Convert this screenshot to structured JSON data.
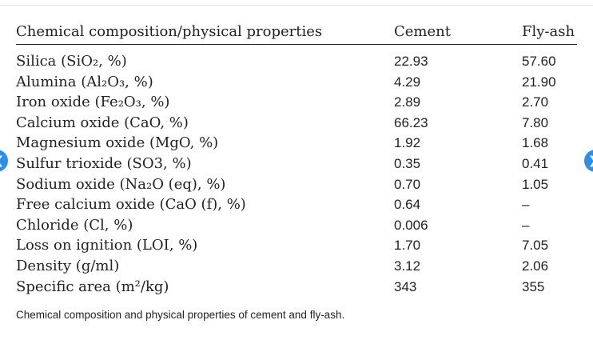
{
  "table": {
    "headers": {
      "property": "Chemical composition/physical properties",
      "cement": "Cement",
      "flyash": "Fly-ash"
    },
    "rows": [
      {
        "property": "Silica (SiO₂, %)",
        "cement": "22.93",
        "flyash": "57.60"
      },
      {
        "property": "Alumina (Al₂O₃, %)",
        "cement": "4.29",
        "flyash": "21.90"
      },
      {
        "property": "Iron oxide (Fe₂O₃, %)",
        "cement": "2.89",
        "flyash": "2.70"
      },
      {
        "property": "Calcium oxide (CaO, %)",
        "cement": "66.23",
        "flyash": "7.80"
      },
      {
        "property": "Magnesium oxide (MgO, %)",
        "cement": "1.92",
        "flyash": "1.68"
      },
      {
        "property": "Sulfur trioxide (SO3, %)",
        "cement": "0.35",
        "flyash": "0.41"
      },
      {
        "property": "Sodium oxide (Na₂O (eq), %)",
        "cement": "0.70",
        "flyash": "1.05"
      },
      {
        "property": "Free calcium oxide (CaO (f), %)",
        "cement": "0.64",
        "flyash": "–"
      },
      {
        "property": "Chloride (Cl, %)",
        "cement": "0.006",
        "flyash": "–"
      },
      {
        "property": "Loss on ignition (LOI, %)",
        "cement": "1.70",
        "flyash": "7.05"
      },
      {
        "property": "Density (g/ml)",
        "cement": "3.12",
        "flyash": "2.06"
      },
      {
        "property": "Specific area (m²/kg)",
        "cement": "343",
        "flyash": "355"
      }
    ]
  },
  "caption": "Chemical composition and physical properties of cement and fly-ash.",
  "nav": {
    "prev_icon": "chevron-left-icon",
    "next_icon": "chevron-right-icon",
    "accent": "#2d8fe6"
  }
}
